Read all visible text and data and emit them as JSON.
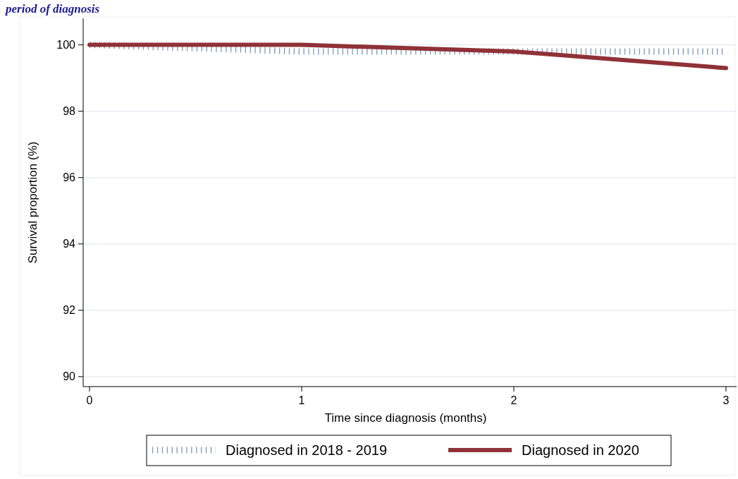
{
  "chart_data": {
    "type": "line",
    "title": "period of diagnosis",
    "xlabel": "Time since diagnosis (months)",
    "ylabel": "Survival proportion (%)",
    "x": [
      0,
      1,
      2,
      3
    ],
    "series": [
      {
        "name": "Diagnosed in 2018 - 2019",
        "color": "#7f9ab5",
        "values": [
          100,
          99.8,
          99.8,
          99.8
        ],
        "line_style": "dotted"
      },
      {
        "name": "Diagnosed in 2020",
        "color": "#8f3237",
        "values": [
          100,
          100,
          99.8,
          99.3
        ],
        "line_style": "solid"
      }
    ],
    "xlim": [
      -0.03,
      3.05
    ],
    "xticks": [
      0,
      1,
      2,
      3
    ],
    "ylim": [
      89.7,
      100.8
    ],
    "yticks": [
      90,
      92,
      94,
      96,
      98,
      100
    ],
    "grid": "y",
    "legend": "bottom",
    "marker": "none"
  }
}
